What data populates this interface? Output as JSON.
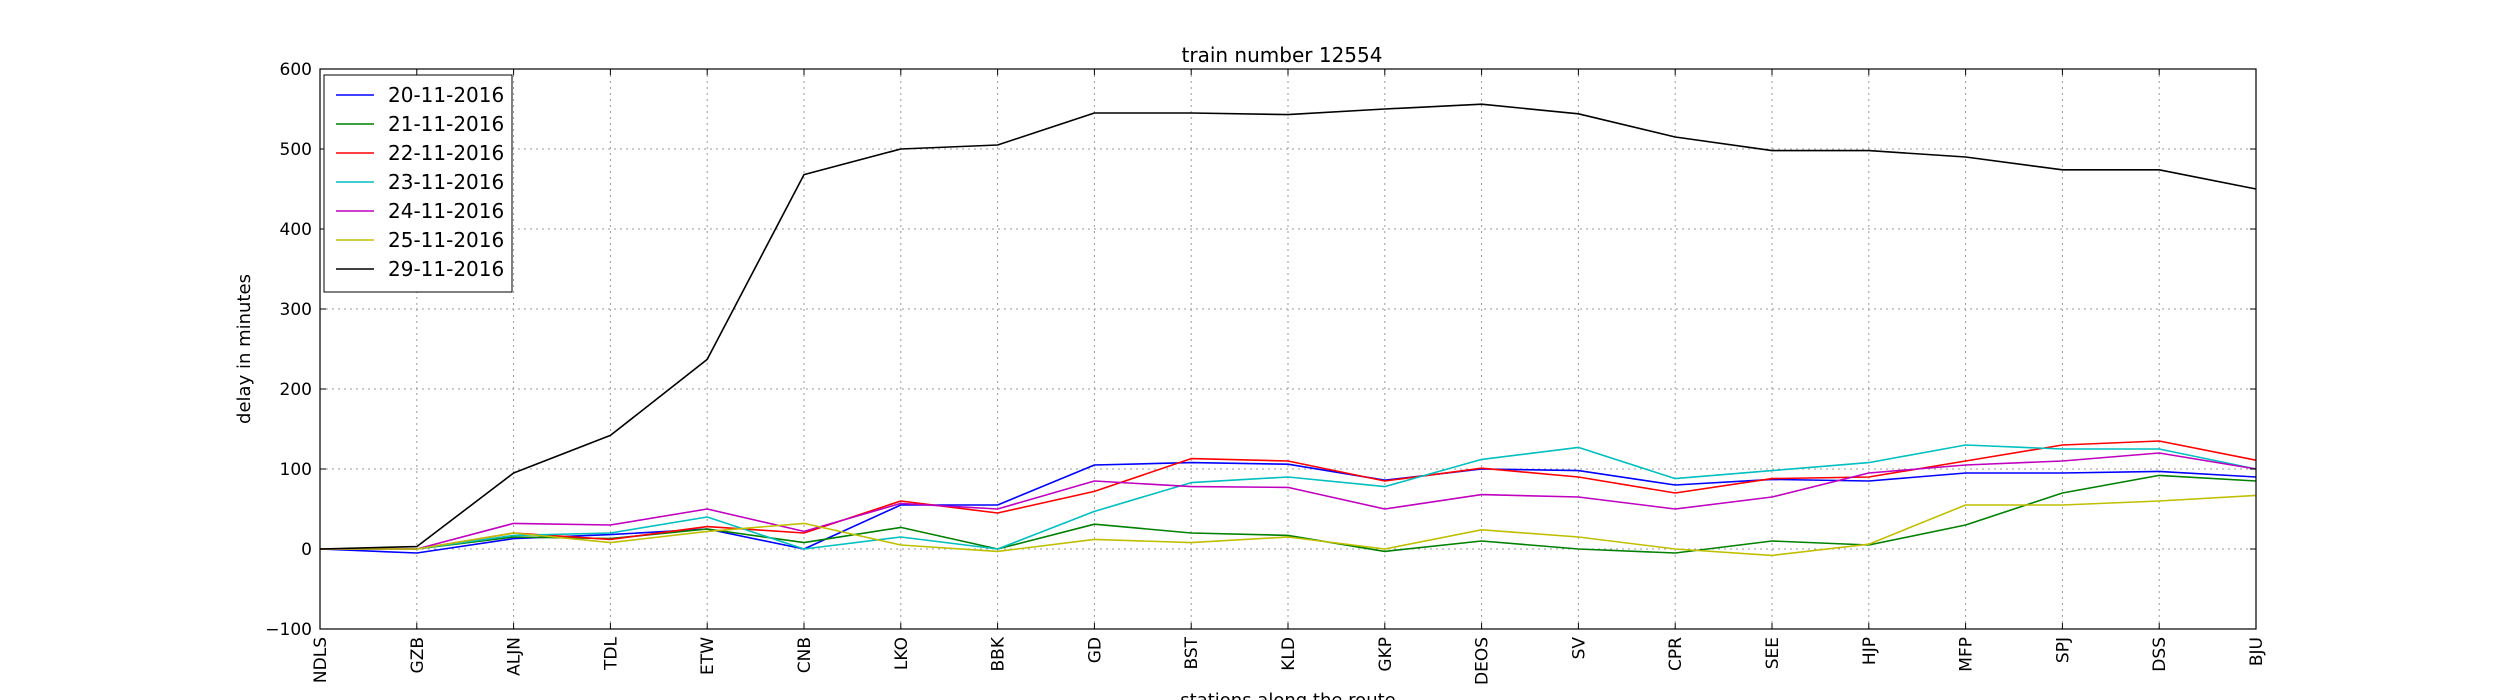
{
  "chart_data": {
    "type": "line",
    "title": "train number 12554",
    "xlabel": "stations along the route",
    "ylabel": "delay in minutes",
    "ylim": [
      -100,
      600
    ],
    "yticks": [
      -100,
      0,
      100,
      200,
      300,
      400,
      500,
      600
    ],
    "grid": true,
    "legend_position": "top-left",
    "categories": [
      "NDLS",
      "GZB",
      "ALJN",
      "TDL",
      "ETW",
      "CNB",
      "LKO",
      "BBK",
      "GD",
      "BST",
      "KLD",
      "GKP",
      "DEOS",
      "SV",
      "CPR",
      "SEE",
      "HJP",
      "MFP",
      "SPJ",
      "DSS",
      "BJU"
    ],
    "series": [
      {
        "name": "20-11-2016",
        "color": "#0000ff",
        "values": [
          0,
          -5,
          13,
          18,
          25,
          0,
          55,
          55,
          105,
          108,
          106,
          86,
          100,
          98,
          80,
          87,
          85,
          95,
          95,
          97,
          90
        ]
      },
      {
        "name": "21-11-2016",
        "color": "#008000",
        "values": [
          0,
          0,
          15,
          13,
          25,
          8,
          27,
          0,
          31,
          20,
          17,
          -3,
          10,
          0,
          -5,
          10,
          5,
          30,
          70,
          92,
          85
        ]
      },
      {
        "name": "22-11-2016",
        "color": "#ff0000",
        "values": [
          0,
          0,
          20,
          12,
          28,
          20,
          60,
          45,
          72,
          113,
          110,
          85,
          101,
          90,
          70,
          88,
          90,
          110,
          130,
          135,
          111
        ]
      },
      {
        "name": "23-11-2016",
        "color": "#00bfbf",
        "values": [
          0,
          0,
          17,
          20,
          40,
          0,
          15,
          0,
          47,
          83,
          90,
          78,
          112,
          127,
          88,
          98,
          108,
          130,
          125,
          125,
          100
        ]
      },
      {
        "name": "24-11-2016",
        "color": "#bf00bf",
        "values": [
          0,
          0,
          32,
          30,
          50,
          22,
          57,
          50,
          85,
          78,
          77,
          50,
          68,
          65,
          50,
          65,
          95,
          105,
          110,
          120,
          100
        ]
      },
      {
        "name": "25-11-2016",
        "color": "#bfbf00",
        "values": [
          0,
          0,
          20,
          8,
          22,
          32,
          5,
          -3,
          12,
          8,
          15,
          0,
          24,
          15,
          0,
          -8,
          6,
          55,
          55,
          60,
          67
        ]
      },
      {
        "name": "29-11-2016",
        "color": "#000000",
        "values": [
          0,
          3,
          95,
          142,
          237,
          468,
          500,
          505,
          545,
          545,
          543,
          550,
          556,
          544,
          515,
          498,
          498,
          490,
          474,
          474,
          450
        ]
      }
    ]
  }
}
